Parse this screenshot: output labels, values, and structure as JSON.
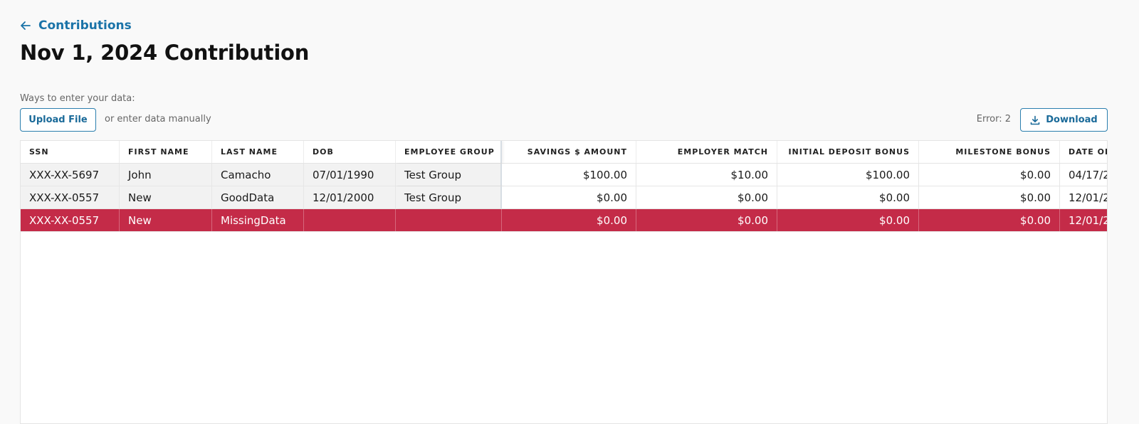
{
  "nav": {
    "back_label": "Contributions"
  },
  "page": {
    "title": "Nov 1, 2024 Contribution"
  },
  "entry": {
    "ways_label": "Ways to enter your data:",
    "upload_label": "Upload File",
    "manual_label": "or enter data manually",
    "error_label": "Error: 2",
    "download_label": "Download"
  },
  "table": {
    "columns": [
      "SSN",
      "FIRST NAME",
      "LAST NAME",
      "DOB",
      "EMPLOYEE GROUP",
      "SAVINGS $ AMOUNT",
      "EMPLOYER MATCH",
      "INITIAL DEPOSIT BONUS",
      "MILESTONE BONUS",
      "DATE OF"
    ],
    "rows": [
      {
        "ssn": "XXX-XX-5697",
        "first": "John",
        "last": "Camacho",
        "dob": "07/01/1990",
        "group": "Test Group",
        "savings": "$100.00",
        "match": "$10.00",
        "initial_bonus": "$100.00",
        "milestone": "$0.00",
        "date": "04/17/2",
        "status": "normal"
      },
      {
        "ssn": "XXX-XX-0557",
        "first": "New",
        "last": "GoodData",
        "dob": "12/01/2000",
        "group": "Test Group",
        "savings": "$0.00",
        "match": "$0.00",
        "initial_bonus": "$0.00",
        "milestone": "$0.00",
        "date": "12/01/2",
        "status": "normal"
      },
      {
        "ssn": "XXX-XX-0557",
        "first": "New",
        "last": "MissingData",
        "dob": "",
        "group": "",
        "savings": "$0.00",
        "match": "$0.00",
        "initial_bonus": "$0.00",
        "milestone": "$0.00",
        "date": "12/01/2",
        "status": "error"
      }
    ]
  },
  "colors": {
    "accent": "#1a73a8",
    "error_row": "#c42b48"
  }
}
